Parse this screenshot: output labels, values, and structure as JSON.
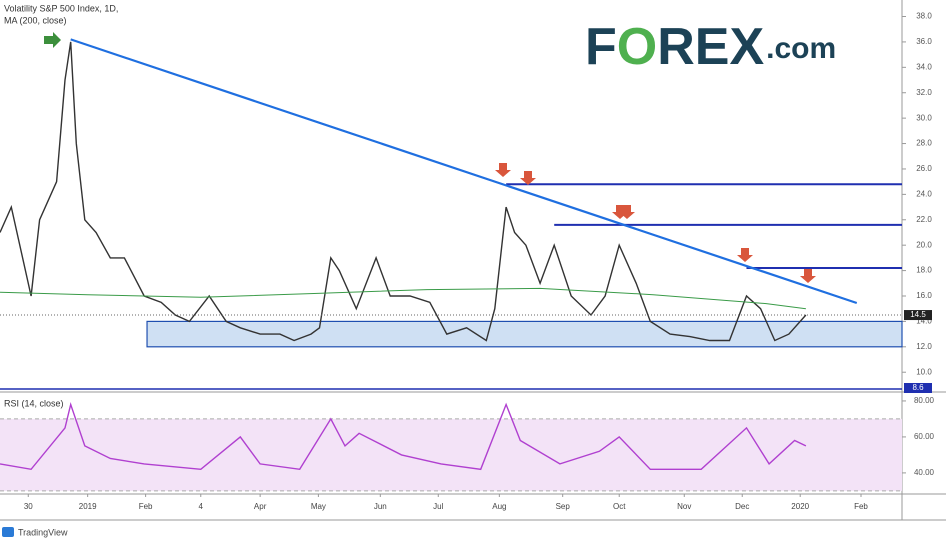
{
  "chart_data": [
    {
      "type": "line",
      "series": [
        {
          "name": "Volatility S&P 500 Index, 1D,",
          "color": "#333333",
          "x": [
            -31,
            -27,
            -20,
            -17,
            -11,
            -8,
            -6,
            -4,
            -1,
            3,
            8,
            13,
            20,
            26,
            31,
            36,
            43,
            49,
            54,
            61,
            68,
            73,
            79,
            82,
            86,
            89,
            95,
            102,
            107,
            114,
            121,
            127,
            134,
            141,
            144,
            148,
            151,
            155,
            160,
            165,
            171,
            178,
            183,
            188,
            194,
            199,
            206,
            213,
            220,
            227,
            233,
            238,
            243,
            248,
            252,
            254
          ],
          "values": [
            21,
            23,
            16,
            22,
            25,
            33,
            36,
            28,
            22,
            21,
            19,
            19,
            16,
            15.5,
            14.5,
            14,
            16,
            14,
            13.5,
            13,
            13,
            12.5,
            13,
            13.5,
            19,
            18,
            15,
            19,
            16,
            16,
            15.5,
            13,
            13.5,
            12.5,
            15,
            23,
            21,
            20,
            17,
            20,
            16,
            14.5,
            16,
            20,
            17,
            14,
            13,
            12.8,
            12.5,
            12.5,
            16,
            15,
            12.5,
            13,
            14,
            14.5
          ]
        },
        {
          "name": "MA (200, close)",
          "color": "#3a9b48",
          "x": [
            -31,
            0,
            40,
            80,
            120,
            160,
            200,
            240,
            254
          ],
          "values": [
            16.3,
            16.1,
            15.9,
            16.2,
            16.5,
            16.6,
            16.1,
            15.4,
            15.0
          ]
        }
      ],
      "trend": {
        "x": [
          -6,
          272
        ],
        "y": [
          36.2,
          15.45
        ],
        "color": "#1f6fe0"
      },
      "levels": [
        {
          "value": 24.8,
          "x": [
            148,
            288
          ]
        },
        {
          "value": 21.6,
          "x": [
            165,
            288
          ]
        },
        {
          "value": 18.2,
          "x": [
            233,
            288
          ]
        }
      ],
      "zone": {
        "y": [
          12.0,
          14.0
        ],
        "x": [
          21,
          288
        ]
      },
      "floor": 8.6,
      "last_value": 14.5,
      "xlim": [
        -31,
        288
      ],
      "ylim": [
        8.6,
        39.3
      ],
      "yticks": [
        {
          "value": 10,
          "label": "10.0"
        },
        {
          "value": 12,
          "label": "12.0"
        },
        {
          "value": 14,
          "label": "14.0"
        },
        {
          "value": 16,
          "label": "16.0"
        },
        {
          "value": 18,
          "label": "18.0"
        },
        {
          "value": 20,
          "label": "20.0"
        },
        {
          "value": 22,
          "label": "22.0"
        },
        {
          "value": 24,
          "label": "24.0"
        },
        {
          "value": 26,
          "label": "26.0"
        },
        {
          "value": 28,
          "label": "28.0"
        },
        {
          "value": 30,
          "label": "30.0"
        },
        {
          "value": 32,
          "label": "32.0"
        },
        {
          "value": 34,
          "label": "34.0"
        },
        {
          "value": 36,
          "label": "36.0"
        },
        {
          "value": 38,
          "label": "38.0"
        }
      ]
    },
    {
      "type": "line",
      "series": [
        {
          "name": "RSI (14, close)",
          "color": "#b040d0",
          "x": [
            -31,
            -20,
            -8,
            -6,
            -1,
            8,
            20,
            40,
            54,
            61,
            75,
            86,
            91,
            96,
            111,
            125,
            139,
            148,
            153,
            167,
            181,
            188,
            199,
            217,
            233,
            241,
            250,
            254
          ],
          "values": [
            45,
            42,
            65,
            78,
            55,
            48,
            45,
            42,
            60,
            45,
            42,
            70,
            55,
            62,
            50,
            45,
            42,
            78,
            58,
            45,
            52,
            60,
            42,
            42,
            65,
            45,
            58,
            55
          ]
        }
      ],
      "band": [
        30,
        70
      ],
      "xlim": [
        -31,
        288
      ],
      "ylim": [
        30.5,
        83.3
      ],
      "yticks": [
        {
          "value": 40,
          "label": "40.00"
        },
        {
          "value": 60,
          "label": "60.00"
        },
        {
          "value": 80,
          "label": "80.00"
        }
      ],
      "xticks": [
        {
          "value": -21,
          "label": "30"
        },
        {
          "value": 0,
          "label": "2019"
        },
        {
          "value": 20.5,
          "label": "Feb"
        },
        {
          "value": 40,
          "label": "4"
        },
        {
          "value": 61,
          "label": "Apr"
        },
        {
          "value": 81.6,
          "label": "May"
        },
        {
          "value": 103.5,
          "label": "Jun"
        },
        {
          "value": 124,
          "label": "Jul"
        },
        {
          "value": 145.6,
          "label": "Aug"
        },
        {
          "value": 168,
          "label": "Sep"
        },
        {
          "value": 188,
          "label": "Oct"
        },
        {
          "value": 211,
          "label": "Nov"
        },
        {
          "value": 231.5,
          "label": "Dec"
        },
        {
          "value": 252,
          "label": "2020"
        },
        {
          "value": 273.5,
          "label": "Feb"
        }
      ]
    }
  ],
  "logo": {
    "parts": [
      "F",
      "O",
      "REX",
      ".com"
    ]
  },
  "footer": "TradingView"
}
